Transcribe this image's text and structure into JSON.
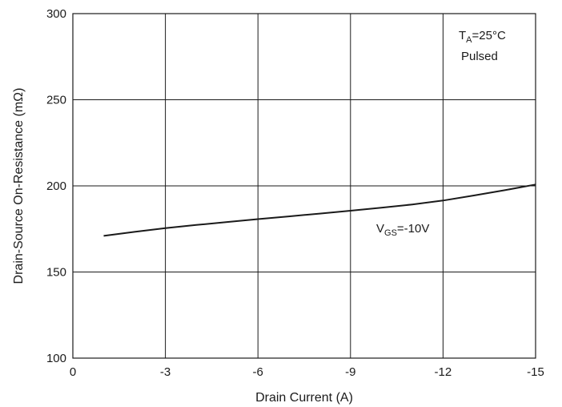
{
  "chart_data": {
    "type": "line",
    "title": "",
    "xlabel": "Drain Current (A)",
    "ylabel": "Drain-Source On-Resistance (mΩ)",
    "xlim": [
      0,
      -15
    ],
    "ylim": [
      100,
      300
    ],
    "x_ticks": [
      "0",
      "-3",
      "-6",
      "-9",
      "-12",
      "-15"
    ],
    "x_tick_values": [
      0,
      -3,
      -6,
      -9,
      -12,
      -15
    ],
    "y_ticks": [
      "100",
      "150",
      "200",
      "250",
      "300"
    ],
    "y_tick_values": [
      100,
      150,
      200,
      250,
      300
    ],
    "grid": true,
    "series": [
      {
        "name": "VGS=-10V",
        "x": [
          -1,
          -2,
          -3,
          -4,
          -5,
          -6,
          -7,
          -8,
          -9,
          -10,
          -11,
          -12,
          -13,
          -14,
          -15
        ],
        "y": [
          171,
          173.3,
          175.5,
          177.3,
          179,
          180.7,
          182.3,
          183.9,
          185.6,
          187.3,
          189.2,
          191.5,
          194.4,
          197.5,
          200.8
        ]
      }
    ],
    "annotations": {
      "condition_main": "T",
      "condition_sub": "A",
      "condition_rest": "=25°C",
      "condition_line2": "Pulsed",
      "series_label_main": "V",
      "series_label_sub": "GS",
      "series_label_rest": "=-10V"
    }
  }
}
